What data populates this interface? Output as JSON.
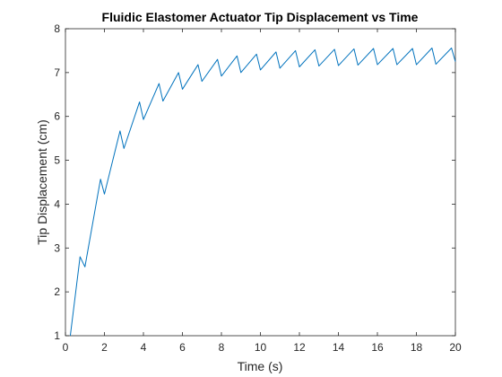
{
  "chart_data": {
    "type": "line",
    "title": "Fluidic Elastomer Actuator Tip Displacement vs Time",
    "xlabel": "Time (s)",
    "ylabel": "Tip Displacement (cm)",
    "xlim": [
      0,
      20
    ],
    "ylim": [
      1,
      8
    ],
    "xticks": [
      "0",
      "2",
      "4",
      "6",
      "8",
      "10",
      "12",
      "14",
      "16",
      "18",
      "20"
    ],
    "yticks": [
      "1",
      "2",
      "3",
      "4",
      "5",
      "6",
      "7",
      "8"
    ],
    "grid": false,
    "legend": "none",
    "series": [
      {
        "color": "#0072bd",
        "x": [
          0.25,
          0.75,
          1.0,
          1.8,
          2.0,
          2.8,
          3.0,
          3.8,
          4.0,
          4.8,
          5.0,
          5.8,
          6.0,
          6.8,
          7.0,
          7.8,
          8.0,
          8.8,
          9.0,
          9.8,
          10.0,
          10.8,
          11.0,
          11.8,
          12.0,
          12.8,
          13.0,
          13.8,
          14.0,
          14.8,
          15.0,
          15.8,
          16.0,
          16.8,
          17.0,
          17.8,
          18.0,
          18.8,
          19.0,
          19.8,
          20.0
        ],
        "y": [
          1.0,
          2.8,
          2.57,
          4.57,
          4.23,
          5.67,
          5.27,
          6.33,
          5.93,
          6.75,
          6.35,
          7.0,
          6.62,
          7.18,
          6.8,
          7.3,
          6.92,
          7.38,
          7.0,
          7.42,
          7.06,
          7.47,
          7.1,
          7.5,
          7.13,
          7.52,
          7.15,
          7.53,
          7.16,
          7.54,
          7.17,
          7.55,
          7.18,
          7.55,
          7.18,
          7.55,
          7.18,
          7.56,
          7.19,
          7.56,
          7.25
        ]
      }
    ]
  }
}
